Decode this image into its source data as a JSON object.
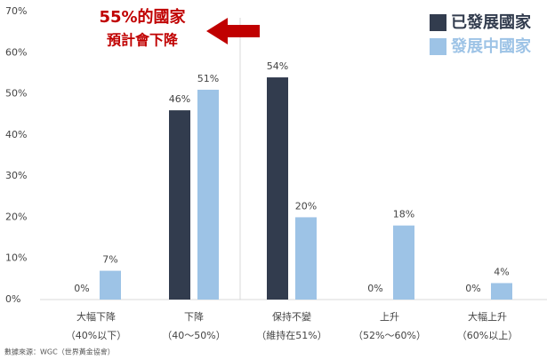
{
  "chart_data": {
    "type": "bar",
    "annotation": [
      "55%的國家",
      "預計會下降"
    ],
    "categories": [
      "大幅下降",
      "下降",
      "保持不變",
      "上升",
      "大幅上升"
    ],
    "category_ranges": [
      "（40%以下）",
      "（40～50%）",
      "（維持在51%）",
      "（52%～60%）",
      "（60%以上）"
    ],
    "series": [
      {
        "name": "已發展國家",
        "color": "#323c4e",
        "values": [
          0,
          46,
          54,
          0,
          0
        ],
        "value_labels": [
          "0%",
          "46%",
          "54%",
          "0%",
          "0%"
        ]
      },
      {
        "name": "發展中國家",
        "color": "#9dc3e6",
        "values": [
          7,
          51,
          20,
          18,
          4
        ],
        "value_labels": [
          "7%",
          "51%",
          "20%",
          "18%",
          "4%"
        ]
      }
    ],
    "ylim": [
      0,
      70
    ],
    "yticks": [
      {
        "value": 0,
        "label": "0%"
      },
      {
        "value": 10,
        "label": "10%"
      },
      {
        "value": 20,
        "label": "20%"
      },
      {
        "value": 30,
        "label": "30%"
      },
      {
        "value": 40,
        "label": "40%"
      },
      {
        "value": 50,
        "label": "50%"
      },
      {
        "value": 60,
        "label": "60%"
      },
      {
        "value": 70,
        "label": "70%"
      }
    ],
    "grid": false,
    "legend": "top-right",
    "source": "數據來源：WGC（世界黃金協會）"
  }
}
